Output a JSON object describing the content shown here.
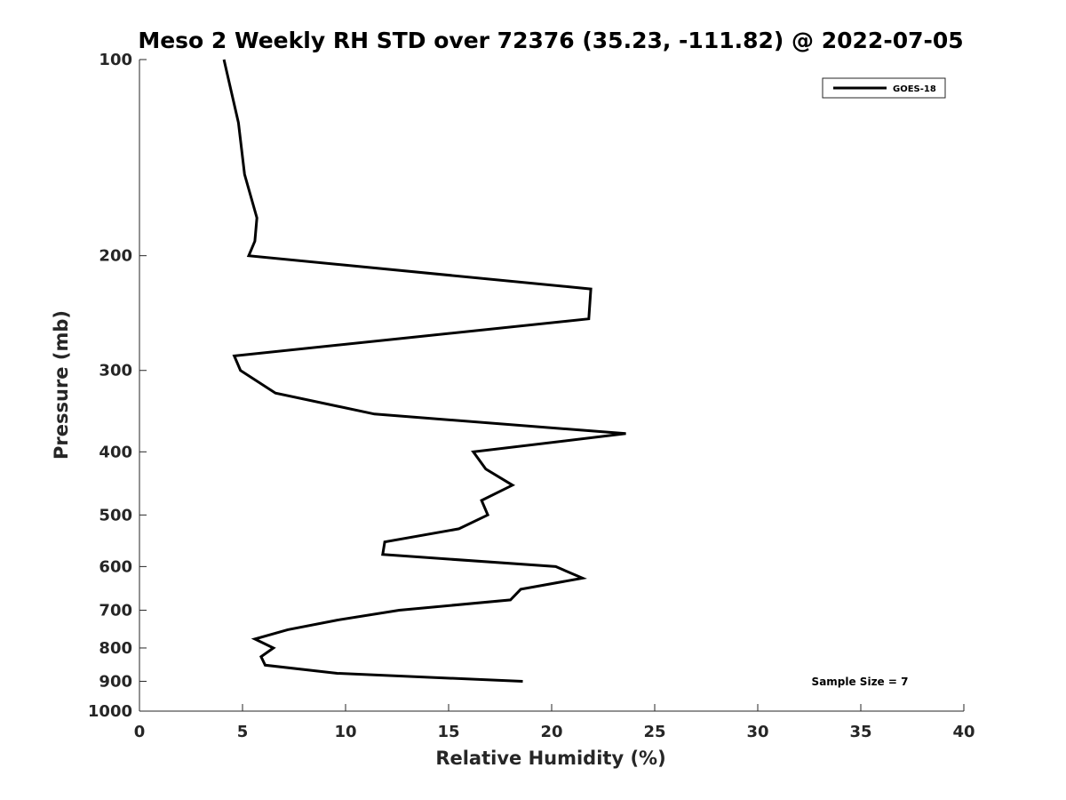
{
  "chart_data": {
    "type": "line",
    "title": "Meso 2 Weekly RH STD over 72376 (35.23, -111.82) @ 2022-07-05",
    "xlabel": "Relative Humidity (%)",
    "ylabel": "Pressure (mb)",
    "xlim": [
      0,
      40
    ],
    "ylim": [
      100,
      1000
    ],
    "yscale": "log",
    "yreversed": true,
    "grid": false,
    "xticks": [
      0,
      5,
      10,
      15,
      20,
      25,
      30,
      35,
      40
    ],
    "xtick_labels": [
      "0",
      "5",
      "10",
      "15",
      "20",
      "25",
      "30",
      "35",
      "40"
    ],
    "yticks": [
      100,
      200,
      300,
      400,
      500,
      600,
      700,
      800,
      900,
      1000
    ],
    "ytick_labels": [
      "100",
      "200",
      "300",
      "400",
      "500",
      "600",
      "700",
      "800",
      "900",
      "1000"
    ],
    "legend_position": "top-right",
    "series": [
      {
        "name": "GOES-18",
        "color": "#000000",
        "x": [
          4.1,
          4.8,
          5.1,
          5.7,
          5.6,
          5.3,
          21.9,
          21.8,
          4.6,
          4.9,
          6.6,
          11.4,
          23.6,
          16.2,
          16.8,
          18.1,
          16.6,
          16.9,
          15.5,
          11.9,
          11.8,
          20.2,
          21.5,
          18.5,
          18.0,
          12.6,
          9.6,
          7.2,
          5.6,
          6.5,
          5.9,
          6.1,
          9.6,
          18.6
        ],
        "y": [
          100,
          125,
          150,
          175,
          190,
          200,
          225,
          250,
          285,
          300,
          325,
          350,
          375,
          400,
          425,
          450,
          475,
          500,
          525,
          550,
          575,
          600,
          625,
          650,
          675,
          700,
          725,
          750,
          775,
          800,
          825,
          850,
          875,
          900
        ]
      }
    ],
    "annotations": [
      {
        "text": "Sample Size = 7",
        "position": "bottom-right"
      }
    ]
  }
}
